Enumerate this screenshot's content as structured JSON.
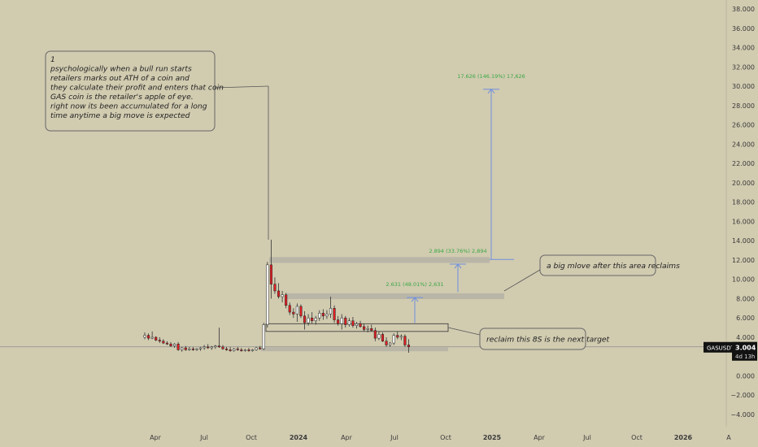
{
  "chart_data": {
    "type": "candlestick",
    "symbol": "GASUSDT",
    "last_price": "3.004",
    "countdown": "4d 13h",
    "ylim": [
      -4.5,
      38.8
    ],
    "y_ticks": [
      "38.000",
      "36.000",
      "34.000",
      "32.000",
      "30.000",
      "28.000",
      "26.000",
      "24.000",
      "22.000",
      "20.000",
      "18.000",
      "16.000",
      "14.000",
      "12.000",
      "10.000",
      "8.000",
      "6.000",
      "4.000",
      "2.000",
      "0.000",
      "−2.000",
      "−4.000"
    ],
    "y_tick_values": [
      38,
      36,
      34,
      32,
      30,
      28,
      26,
      24,
      22,
      20,
      18,
      16,
      14,
      12,
      10,
      8,
      6,
      4,
      2,
      0,
      -2,
      -4
    ],
    "x_ticks": [
      {
        "label": "Apr",
        "bold": false
      },
      {
        "label": "Jul",
        "bold": false
      },
      {
        "label": "Oct",
        "bold": false
      },
      {
        "label": "2024",
        "bold": true
      },
      {
        "label": "Apr",
        "bold": false
      },
      {
        "label": "Jul",
        "bold": false
      },
      {
        "label": "Oct",
        "bold": false
      },
      {
        "label": "2025",
        "bold": true
      },
      {
        "label": "Apr",
        "bold": false
      },
      {
        "label": "Jul",
        "bold": false
      },
      {
        "label": "Oct",
        "bold": false
      },
      {
        "label": "2026",
        "bold": true
      },
      {
        "label": "A",
        "bold": false
      }
    ],
    "candles_weekly": [
      [
        4.0,
        4.5,
        3.8,
        4.2
      ],
      [
        4.2,
        4.4,
        3.7,
        3.9
      ],
      [
        3.9,
        4.6,
        3.8,
        4.0
      ],
      [
        4.0,
        4.1,
        3.6,
        3.7
      ],
      [
        3.7,
        4.0,
        3.4,
        3.6
      ],
      [
        3.6,
        3.8,
        3.3,
        3.4
      ],
      [
        3.4,
        3.6,
        3.2,
        3.3
      ],
      [
        3.3,
        3.5,
        3.0,
        3.1
      ],
      [
        3.1,
        3.4,
        2.9,
        3.3
      ],
      [
        3.3,
        3.5,
        2.6,
        2.7
      ],
      [
        2.7,
        3.0,
        2.5,
        2.9
      ],
      [
        2.9,
        3.1,
        2.6,
        2.7
      ],
      [
        2.7,
        3.0,
        2.6,
        2.8
      ],
      [
        2.8,
        3.0,
        2.6,
        2.7
      ],
      [
        2.7,
        2.9,
        2.6,
        2.8
      ],
      [
        2.8,
        3.0,
        2.6,
        2.9
      ],
      [
        2.9,
        3.2,
        2.7,
        3.0
      ],
      [
        3.0,
        3.3,
        2.8,
        2.9
      ],
      [
        2.9,
        3.1,
        2.7,
        3.0
      ],
      [
        3.0,
        3.2,
        2.8,
        3.1
      ],
      [
        3.1,
        5.0,
        2.9,
        3.0
      ],
      [
        3.0,
        3.2,
        2.7,
        2.8
      ],
      [
        2.8,
        3.0,
        2.6,
        2.7
      ],
      [
        2.7,
        3.0,
        2.5,
        2.6
      ],
      [
        2.6,
        2.9,
        2.5,
        2.8
      ],
      [
        2.8,
        3.0,
        2.6,
        2.7
      ],
      [
        2.7,
        2.9,
        2.5,
        2.6
      ],
      [
        2.6,
        2.8,
        2.5,
        2.7
      ],
      [
        2.7,
        2.9,
        2.5,
        2.6
      ],
      [
        2.6,
        2.8,
        2.5,
        2.7
      ],
      [
        2.7,
        3.0,
        2.6,
        2.9
      ],
      [
        2.9,
        3.1,
        2.7,
        2.8
      ],
      [
        2.8,
        5.5,
        2.7,
        5.3
      ],
      [
        5.3,
        11.8,
        5.0,
        11.5
      ],
      [
        11.5,
        14.1,
        8.0,
        9.5
      ],
      [
        9.5,
        10.2,
        8.5,
        8.8
      ],
      [
        8.8,
        9.6,
        8.0,
        8.2
      ],
      [
        8.2,
        8.8,
        7.6,
        8.4
      ],
      [
        8.4,
        8.6,
        7.0,
        7.3
      ],
      [
        7.3,
        7.6,
        6.3,
        6.6
      ],
      [
        6.6,
        7.0,
        6.0,
        6.4
      ],
      [
        6.4,
        7.5,
        5.6,
        7.2
      ],
      [
        7.2,
        7.4,
        6.0,
        6.2
      ],
      [
        6.2,
        6.7,
        4.8,
        5.5
      ],
      [
        5.5,
        6.4,
        5.2,
        6.0
      ],
      [
        6.0,
        6.6,
        5.4,
        5.7
      ],
      [
        5.7,
        6.2,
        5.3,
        6.0
      ],
      [
        6.0,
        6.8,
        5.7,
        6.5
      ],
      [
        6.5,
        6.9,
        5.8,
        6.2
      ],
      [
        6.2,
        6.8,
        5.9,
        6.4
      ],
      [
        6.4,
        8.2,
        6.0,
        7.0
      ],
      [
        7.0,
        7.3,
        5.5,
        5.8
      ],
      [
        5.8,
        6.2,
        5.2,
        5.4
      ],
      [
        5.4,
        6.4,
        4.8,
        6.0
      ],
      [
        6.0,
        6.2,
        5.0,
        5.3
      ],
      [
        5.3,
        6.0,
        5.1,
        5.7
      ],
      [
        5.7,
        6.1,
        5.0,
        5.2
      ],
      [
        5.2,
        5.6,
        4.9,
        5.4
      ],
      [
        5.4,
        5.7,
        5.0,
        5.1
      ],
      [
        5.1,
        5.4,
        4.6,
        4.8
      ],
      [
        4.8,
        5.2,
        4.5,
        4.9
      ],
      [
        4.9,
        5.3,
        4.6,
        4.7
      ],
      [
        4.7,
        5.0,
        3.6,
        3.9
      ],
      [
        3.9,
        4.6,
        3.7,
        4.3
      ],
      [
        4.3,
        4.5,
        3.5,
        3.6
      ],
      [
        3.6,
        4.0,
        3.0,
        3.2
      ],
      [
        3.2,
        3.5,
        3.0,
        3.4
      ],
      [
        3.4,
        4.4,
        3.2,
        4.2
      ],
      [
        4.2,
        4.6,
        3.8,
        4.0
      ],
      [
        4.0,
        4.3,
        3.7,
        4.1
      ],
      [
        4.1,
        4.3,
        3.0,
        3.2
      ],
      [
        3.2,
        3.8,
        2.4,
        3.004
      ]
    ],
    "zones": [
      {
        "name": "zone-top",
        "low": 11.7,
        "high": 12.3
      },
      {
        "name": "zone-middle",
        "low": 7.95,
        "high": 8.55
      },
      {
        "name": "zone-outline",
        "low": 4.6,
        "high": 5.4
      },
      {
        "name": "zone-bottom",
        "low": 2.55,
        "high": 2.95
      }
    ],
    "price_ranges": [
      {
        "label": "2.631 (48.01%) 2,631",
        "from": 5.48,
        "to": 8.11
      },
      {
        "label": "2.894 (33.76%) 2,894",
        "from": 8.68,
        "to": 11.57
      },
      {
        "label": "17.626 (146.19%) 17,626",
        "from": 12.05,
        "to": 29.68
      }
    ],
    "annotations": [
      {
        "name": "note-psychology",
        "lines": [
          "1",
          "psychologically  when a bull run starts",
          "retailers marks out ATH of a coin and",
          "they calculate their profit and enters that coin",
          "GAS coin is the retailer's apple of eye.",
          "right now its been accumulated for a long",
          "time anytime a big move is expected"
        ]
      },
      {
        "name": "note-big-move",
        "lines": [
          "a big mlove after this area reclaims"
        ]
      },
      {
        "name": "note-reclaim",
        "lines": [
          "reclaim this 8S is the next target"
        ]
      }
    ],
    "colors": {
      "background": "#d1cbb0",
      "bull": "#ffffff",
      "bear": "#e01e24",
      "wick": "#333333",
      "zone": "#b9b6a8",
      "measure_line": "#6f8fdc",
      "measure_text": "#3aa843",
      "price_tag": "#121212"
    }
  }
}
